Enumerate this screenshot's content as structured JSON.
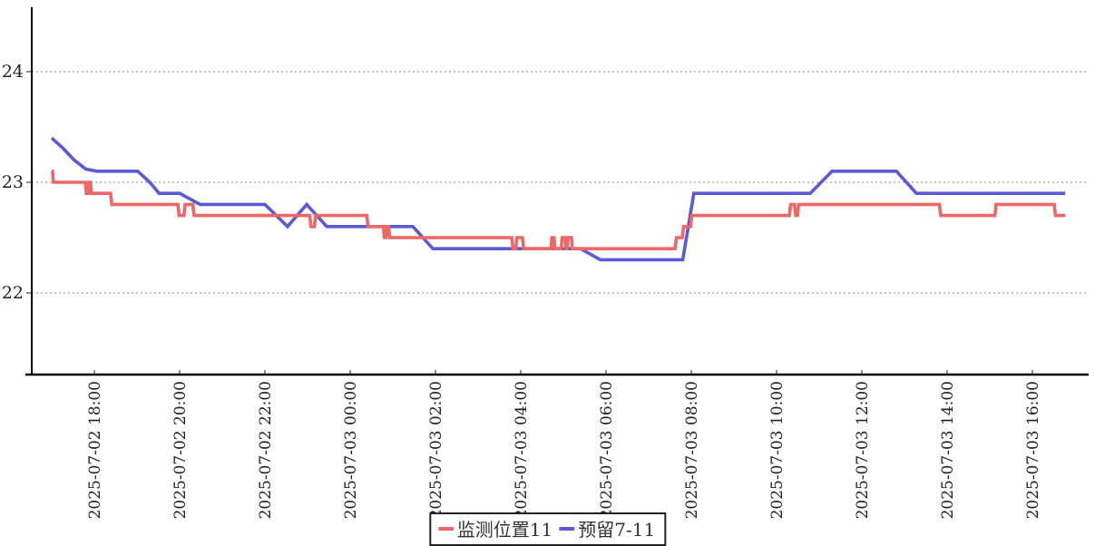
{
  "chart_data": {
    "type": "line",
    "title": "",
    "xlabel": "",
    "ylabel": "",
    "grid": "horizontal-dashed",
    "legend_position": "bottom-center",
    "x_axis": {
      "unit": "datetime",
      "tick_t": [
        1,
        3,
        5,
        7,
        9,
        11,
        13,
        15,
        17,
        19,
        21,
        23
      ],
      "tick_labels": [
        "2025-07-02 18:00",
        "2025-07-02 20:00",
        "2025-07-02 22:00",
        "2025-07-03 00:00",
        "2025-07-03 02:00",
        "2025-07-03 04:00",
        "2025-07-03 06:00",
        "2025-07-03 08:00",
        "2025-07-03 10:00",
        "2025-07-03 12:00",
        "2025-07-03 14:00",
        "2025-07-03 16:00"
      ],
      "t_is_hours_since": "2025-07-02 17:00",
      "range_t": [
        -0.5,
        24.3
      ]
    },
    "y_axis": {
      "ticks": [
        22,
        23,
        24
      ],
      "range": [
        21.3,
        24.6
      ]
    },
    "series": [
      {
        "name": "监测位置11",
        "color": "#ee6666",
        "points": [
          [
            0.0,
            23.1
          ],
          [
            0.02,
            23.1
          ],
          [
            0.04,
            23.0
          ],
          [
            0.79,
            23.0
          ],
          [
            0.81,
            22.9
          ],
          [
            0.85,
            22.9
          ],
          [
            0.87,
            23.0
          ],
          [
            0.91,
            23.0
          ],
          [
            0.93,
            22.9
          ],
          [
            1.38,
            22.9
          ],
          [
            1.41,
            22.8
          ],
          [
            2.96,
            22.8
          ],
          [
            2.99,
            22.7
          ],
          [
            3.1,
            22.7
          ],
          [
            3.13,
            22.8
          ],
          [
            3.31,
            22.8
          ],
          [
            3.34,
            22.7
          ],
          [
            6.05,
            22.7
          ],
          [
            6.08,
            22.6
          ],
          [
            6.16,
            22.6
          ],
          [
            6.19,
            22.7
          ],
          [
            7.39,
            22.7
          ],
          [
            7.42,
            22.6
          ],
          [
            7.78,
            22.6
          ],
          [
            7.8,
            22.5
          ],
          [
            7.84,
            22.5
          ],
          [
            7.86,
            22.6
          ],
          [
            7.9,
            22.6
          ],
          [
            7.93,
            22.5
          ],
          [
            10.79,
            22.5
          ],
          [
            10.82,
            22.4
          ],
          [
            10.88,
            22.4
          ],
          [
            10.91,
            22.5
          ],
          [
            11.04,
            22.5
          ],
          [
            11.07,
            22.4
          ],
          [
            11.71,
            22.4
          ],
          [
            11.73,
            22.5
          ],
          [
            11.78,
            22.5
          ],
          [
            11.8,
            22.4
          ],
          [
            11.95,
            22.4
          ],
          [
            11.97,
            22.5
          ],
          [
            12.04,
            22.5
          ],
          [
            12.06,
            22.4
          ],
          [
            12.09,
            22.4
          ],
          [
            12.11,
            22.5
          ],
          [
            12.19,
            22.5
          ],
          [
            12.21,
            22.4
          ],
          [
            14.62,
            22.4
          ],
          [
            14.65,
            22.5
          ],
          [
            14.79,
            22.5
          ],
          [
            14.82,
            22.6
          ],
          [
            14.98,
            22.6
          ],
          [
            15.01,
            22.7
          ],
          [
            17.3,
            22.7
          ],
          [
            17.33,
            22.8
          ],
          [
            17.42,
            22.8
          ],
          [
            17.45,
            22.7
          ],
          [
            17.49,
            22.7
          ],
          [
            17.52,
            22.8
          ],
          [
            20.82,
            22.8
          ],
          [
            20.85,
            22.7
          ],
          [
            22.12,
            22.7
          ],
          [
            22.15,
            22.8
          ],
          [
            23.51,
            22.8
          ],
          [
            23.54,
            22.7
          ],
          [
            23.77,
            22.7
          ]
        ]
      },
      {
        "name": "预留7-11",
        "color": "#5a5ad9",
        "points": [
          [
            0.0,
            23.4
          ],
          [
            0.26,
            23.31
          ],
          [
            0.53,
            23.2
          ],
          [
            0.8,
            23.12
          ],
          [
            1.06,
            23.1
          ],
          [
            2.02,
            23.1
          ],
          [
            2.3,
            23.0
          ],
          [
            2.52,
            22.9
          ],
          [
            3.0,
            22.9
          ],
          [
            3.48,
            22.8
          ],
          [
            5.0,
            22.8
          ],
          [
            5.53,
            22.6
          ],
          [
            5.98,
            22.8
          ],
          [
            6.45,
            22.6
          ],
          [
            8.47,
            22.6
          ],
          [
            8.94,
            22.4
          ],
          [
            12.4,
            22.4
          ],
          [
            12.87,
            22.3
          ],
          [
            14.8,
            22.3
          ],
          [
            15.06,
            22.9
          ],
          [
            17.79,
            22.9
          ],
          [
            18.3,
            23.1
          ],
          [
            19.81,
            23.1
          ],
          [
            20.28,
            22.9
          ],
          [
            23.77,
            22.9
          ]
        ]
      }
    ]
  },
  "legend": {
    "series1": "监测位置11",
    "series2": "预留7-11"
  },
  "colors": {
    "series1": "#ee6666",
    "series2": "#5a5ad9",
    "grid": "#858585",
    "axis": "#000000",
    "text": "#222222",
    "background": "#ffffff"
  }
}
